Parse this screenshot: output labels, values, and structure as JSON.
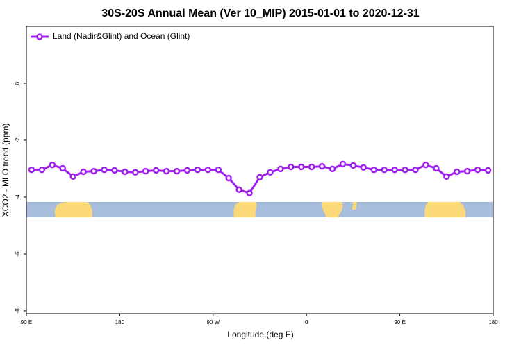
{
  "chart_data": {
    "type": "line",
    "title": "30S-20S Annual Mean (Ver 10_MIP)   2015-01-01 to 2020-12-31",
    "xlabel": "Longitude (deg E)",
    "ylabel": "XCO2 - MLO trend (ppm)",
    "x": [
      95,
      105,
      115,
      125,
      135,
      145,
      155,
      165,
      175,
      185,
      195,
      205,
      215,
      225,
      235,
      245,
      255,
      265,
      275,
      285,
      295,
      305,
      315,
      325,
      335,
      345,
      355,
      365,
      375,
      385,
      395,
      405,
      415,
      425,
      435,
      445,
      455,
      465,
      475,
      485,
      495,
      505,
      515,
      525,
      535
    ],
    "series": [
      {
        "name": "Land (Nadir&Glint) and Ocean (Glint)",
        "color": "#a020f0",
        "values": [
          -3.04,
          -3.04,
          -2.87,
          -2.99,
          -3.28,
          -3.11,
          -3.09,
          -3.04,
          -3.06,
          -3.11,
          -3.13,
          -3.09,
          -3.06,
          -3.09,
          -3.09,
          -3.06,
          -3.04,
          -3.04,
          -3.04,
          -3.33,
          -3.74,
          -3.86,
          -3.3,
          -3.13,
          -3.01,
          -2.94,
          -2.94,
          -2.94,
          -2.92,
          -3.01,
          -2.84,
          -2.89,
          -2.96,
          -3.04,
          -3.04,
          -3.04,
          -3.04,
          -3.04,
          -2.87,
          -2.99,
          -3.28,
          -3.11,
          -3.09,
          -3.04,
          -3.06
        ]
      }
    ],
    "xlim": [
      90,
      540
    ],
    "xticks": [
      {
        "value": 90,
        "label": "90 E"
      },
      180,
      {
        "value": 270,
        "label": "90 W"
      },
      {
        "value": 360,
        "label": "0"
      },
      {
        "value": 450,
        "label": "90 E"
      },
      {
        "value": 540,
        "label": "180"
      }
    ],
    "ylim": [
      -8.1,
      2
    ],
    "yticks": [
      0,
      -2,
      -4,
      -6,
      -8
    ],
    "legend": "top-left"
  }
}
